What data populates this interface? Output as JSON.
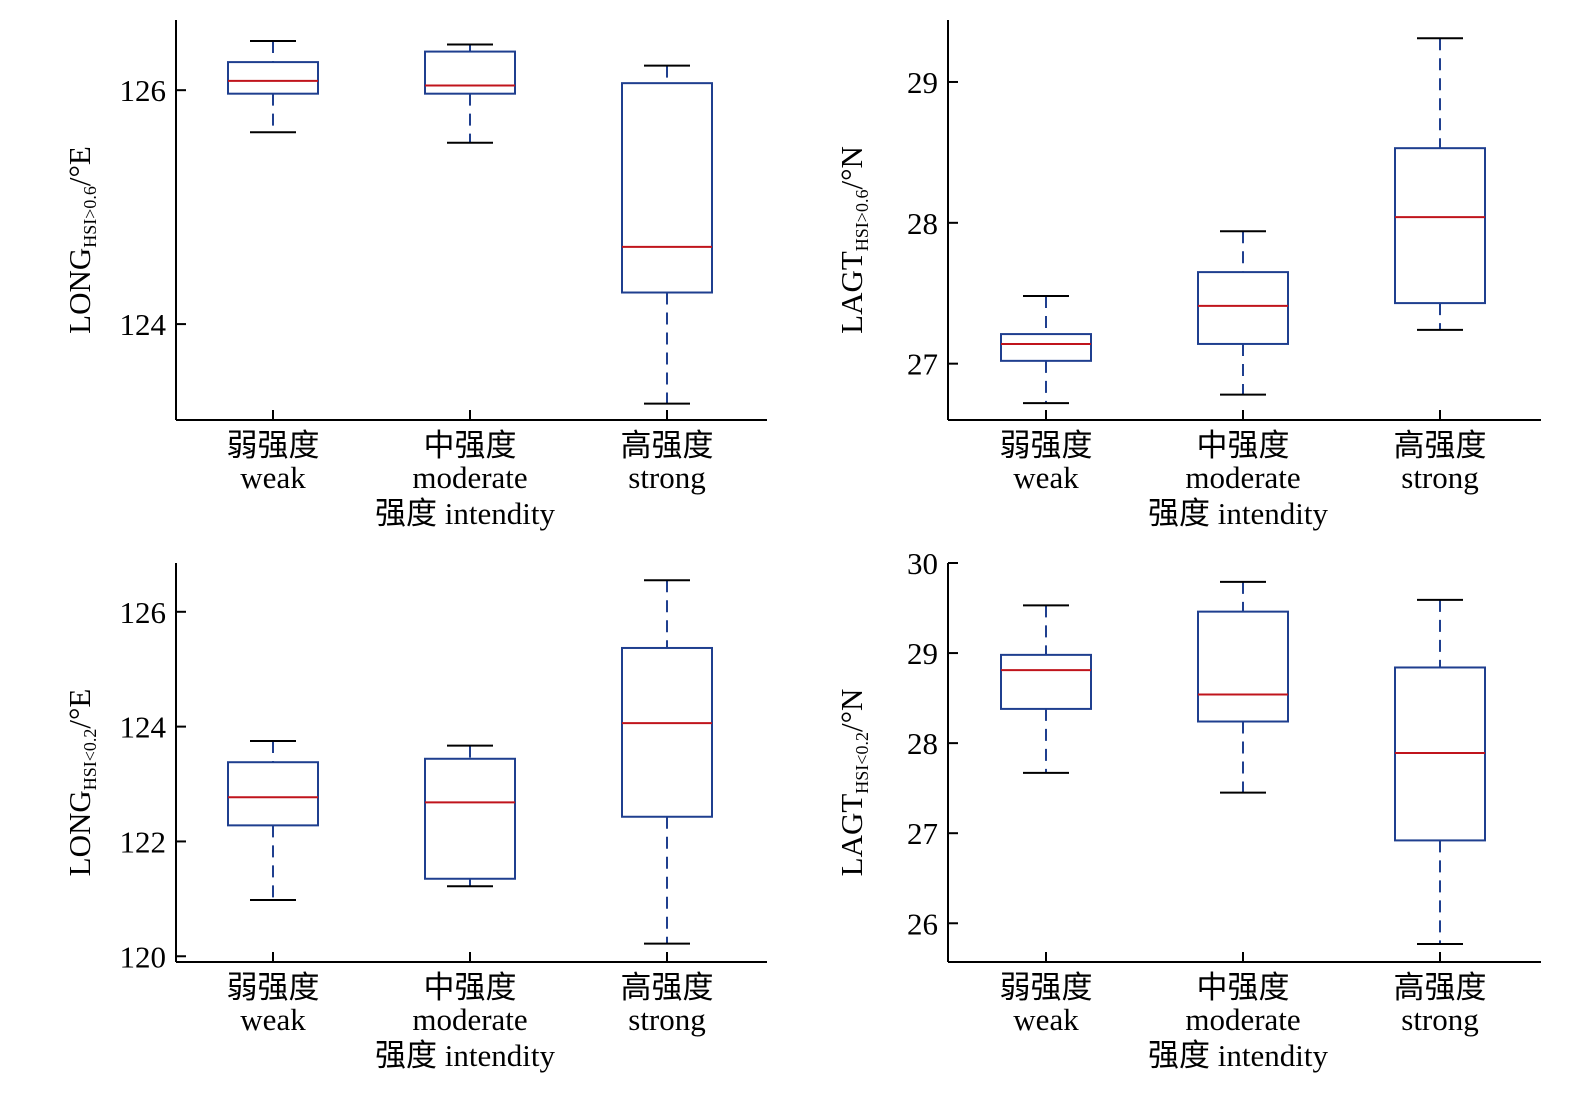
{
  "colors": {
    "box": "#1f3f8f",
    "median": "#c0141c",
    "axis": "#000000"
  },
  "chart_data": [
    {
      "type": "box",
      "panel": "top-left",
      "ylabel_main": "LONG",
      "ylabel_sub": "HSI>0.6",
      "ylabel_unit": "/°E",
      "xlabel": "强度 intendity",
      "categories": [
        {
          "zh": "弱强度",
          "en": "weak"
        },
        {
          "zh": "中强度",
          "en": "moderate"
        },
        {
          "zh": "高强度",
          "en": "strong"
        }
      ],
      "yticks": [
        124,
        126
      ],
      "ylim": [
        123.18,
        126.6
      ],
      "boxes": [
        {
          "whisker_low": 125.64,
          "q1": 125.97,
          "median": 126.08,
          "q3": 126.24,
          "whisker_high": 126.42
        },
        {
          "whisker_low": 125.55,
          "q1": 125.97,
          "median": 126.04,
          "q3": 126.33,
          "whisker_high": 126.39
        },
        {
          "whisker_low": 123.32,
          "q1": 124.27,
          "median": 124.66,
          "q3": 126.06,
          "whisker_high": 126.21
        }
      ]
    },
    {
      "type": "box",
      "panel": "top-right",
      "ylabel_main": "LAGT",
      "ylabel_sub": "HSI>0.6",
      "ylabel_unit": "/°N",
      "xlabel": "强度 intendity",
      "categories": [
        {
          "zh": "弱强度",
          "en": "weak"
        },
        {
          "zh": "中强度",
          "en": "moderate"
        },
        {
          "zh": "高强度",
          "en": "strong"
        }
      ],
      "yticks": [
        27,
        28,
        29
      ],
      "ylim": [
        26.6,
        29.44
      ],
      "boxes": [
        {
          "whisker_low": 26.72,
          "q1": 27.02,
          "median": 27.14,
          "q3": 27.21,
          "whisker_high": 27.48
        },
        {
          "whisker_low": 26.78,
          "q1": 27.14,
          "median": 27.41,
          "q3": 27.65,
          "whisker_high": 27.94
        },
        {
          "whisker_low": 27.24,
          "q1": 27.43,
          "median": 28.04,
          "q3": 28.53,
          "whisker_high": 29.31
        }
      ]
    },
    {
      "type": "box",
      "panel": "bottom-left",
      "ylabel_main": "LONG",
      "ylabel_sub": "HSI<0.2",
      "ylabel_unit": "/°E",
      "xlabel": "强度 intendity",
      "categories": [
        {
          "zh": "弱强度",
          "en": "weak"
        },
        {
          "zh": "中强度",
          "en": "moderate"
        },
        {
          "zh": "高强度",
          "en": "strong"
        }
      ],
      "yticks": [
        120,
        122,
        124,
        126
      ],
      "ylim": [
        119.9,
        126.85
      ],
      "boxes": [
        {
          "whisker_low": 120.98,
          "q1": 122.28,
          "median": 122.77,
          "q3": 123.38,
          "whisker_high": 123.75
        },
        {
          "whisker_low": 121.22,
          "q1": 121.35,
          "median": 122.68,
          "q3": 123.44,
          "whisker_high": 123.67
        },
        {
          "whisker_low": 120.22,
          "q1": 122.43,
          "median": 124.06,
          "q3": 125.37,
          "whisker_high": 126.55
        }
      ]
    },
    {
      "type": "box",
      "panel": "bottom-right",
      "ylabel_main": "LAGT",
      "ylabel_sub": "HSI<0.2",
      "ylabel_unit": "/°N",
      "xlabel": "强度 intendity",
      "categories": [
        {
          "zh": "弱强度",
          "en": "weak"
        },
        {
          "zh": "中强度",
          "en": "moderate"
        },
        {
          "zh": "高强度",
          "en": "strong"
        }
      ],
      "yticks": [
        26,
        27,
        28,
        29,
        30
      ],
      "ylim": [
        25.57,
        30.0
      ],
      "boxes": [
        {
          "whisker_low": 27.67,
          "q1": 28.38,
          "median": 28.81,
          "q3": 28.98,
          "whisker_high": 29.53
        },
        {
          "whisker_low": 27.45,
          "q1": 28.24,
          "median": 28.54,
          "q3": 29.46,
          "whisker_high": 29.79
        },
        {
          "whisker_low": 25.77,
          "q1": 26.92,
          "median": 27.89,
          "q3": 28.84,
          "whisker_high": 29.59
        }
      ]
    }
  ]
}
